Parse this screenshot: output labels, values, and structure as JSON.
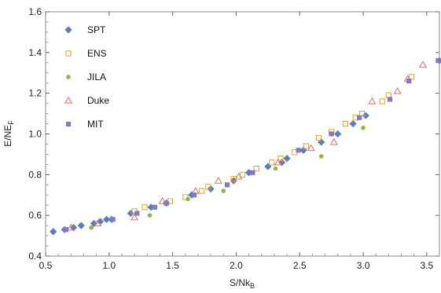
{
  "chart_data": {
    "type": "scatter",
    "xlabel_main": "S/Nk",
    "xlabel_sub": "B",
    "ylabel_main": "E/NE",
    "ylabel_sub": "F",
    "xlim": [
      0.5,
      3.6
    ],
    "ylim": [
      0.4,
      1.6
    ],
    "xticks": [
      0.5,
      1.0,
      1.5,
      2.0,
      2.5,
      3.0,
      3.5
    ],
    "yticks": [
      0.4,
      0.6,
      0.8,
      1.0,
      1.2,
      1.4,
      1.6
    ],
    "xtick_labels": [
      "0.5",
      "1.0",
      "1.5",
      "2.0",
      "2.5",
      "3.0",
      "3.5"
    ],
    "ytick_labels": [
      "0.4",
      "0.6",
      "0.8",
      "1.0",
      "1.2",
      "1.4",
      "1.6"
    ],
    "grid": false,
    "legend_position": "top-left",
    "series": [
      {
        "name": "SPT",
        "marker": "diamond",
        "color": "#5b7dbf",
        "points": [
          [
            0.56,
            0.52
          ],
          [
            0.65,
            0.53
          ],
          [
            0.72,
            0.54
          ],
          [
            0.78,
            0.55
          ],
          [
            0.88,
            0.56
          ],
          [
            0.93,
            0.57
          ],
          [
            0.98,
            0.58
          ],
          [
            1.02,
            0.58
          ],
          [
            1.17,
            0.61
          ],
          [
            1.33,
            0.64
          ],
          [
            1.45,
            0.66
          ],
          [
            1.65,
            0.7
          ],
          [
            1.8,
            0.73
          ],
          [
            1.98,
            0.77
          ],
          [
            2.1,
            0.81
          ],
          [
            2.25,
            0.84
          ],
          [
            2.36,
            0.86
          ],
          [
            2.4,
            0.88
          ],
          [
            2.53,
            0.92
          ],
          [
            2.67,
            0.96
          ],
          [
            2.8,
            1.0
          ],
          [
            2.92,
            1.05
          ],
          [
            3.02,
            1.09
          ],
          [
            3.6,
            1.36
          ]
        ]
      },
      {
        "name": "ENS",
        "marker": "square-open",
        "color": "#e8a030",
        "points": [
          [
            1.2,
            0.62
          ],
          [
            1.28,
            0.64
          ],
          [
            1.48,
            0.67
          ],
          [
            1.6,
            0.69
          ],
          [
            1.73,
            0.72
          ],
          [
            1.78,
            0.74
          ],
          [
            1.98,
            0.78
          ],
          [
            2.05,
            0.8
          ],
          [
            2.16,
            0.83
          ],
          [
            2.28,
            0.86
          ],
          [
            2.35,
            0.88
          ],
          [
            2.46,
            0.91
          ],
          [
            2.55,
            0.94
          ],
          [
            2.65,
            0.98
          ],
          [
            2.75,
            1.01
          ],
          [
            2.86,
            1.05
          ],
          [
            2.94,
            1.08
          ],
          [
            2.99,
            1.1
          ],
          [
            3.15,
            1.16
          ],
          [
            3.2,
            1.19
          ],
          [
            3.38,
            1.28
          ]
        ]
      },
      {
        "name": "JILA",
        "marker": "circle",
        "color": "#8db845",
        "points": [
          [
            0.86,
            0.54
          ],
          [
            1.32,
            0.6
          ],
          [
            1.62,
            0.68
          ],
          [
            1.9,
            0.72
          ],
          [
            2.31,
            0.83
          ],
          [
            2.67,
            0.89
          ],
          [
            3.0,
            1.03
          ]
        ]
      },
      {
        "name": "Duke",
        "marker": "triangle-open",
        "color": "#e07060",
        "points": [
          [
            0.7,
            0.54
          ],
          [
            0.91,
            0.56
          ],
          [
            1.2,
            0.59
          ],
          [
            1.42,
            0.67
          ],
          [
            1.68,
            0.72
          ],
          [
            1.86,
            0.77
          ],
          [
            2.02,
            0.79
          ],
          [
            2.33,
            0.86
          ],
          [
            2.59,
            0.93
          ],
          [
            2.77,
            0.96
          ],
          [
            3.07,
            1.16
          ],
          [
            3.27,
            1.21
          ],
          [
            3.35,
            1.27
          ],
          [
            3.47,
            1.34
          ]
        ]
      },
      {
        "name": "MIT",
        "marker": "square",
        "color": "#8878c0",
        "points": [
          [
            0.66,
            0.53
          ],
          [
            1.03,
            0.58
          ],
          [
            1.22,
            0.61
          ],
          [
            1.36,
            0.64
          ],
          [
            1.45,
            0.66
          ],
          [
            1.67,
            0.7
          ],
          [
            1.93,
            0.75
          ],
          [
            2.13,
            0.81
          ],
          [
            2.49,
            0.92
          ],
          [
            2.75,
            1.0
          ],
          [
            2.97,
            1.08
          ],
          [
            3.21,
            1.17
          ],
          [
            3.36,
            1.26
          ],
          [
            3.59,
            1.36
          ]
        ]
      }
    ]
  }
}
